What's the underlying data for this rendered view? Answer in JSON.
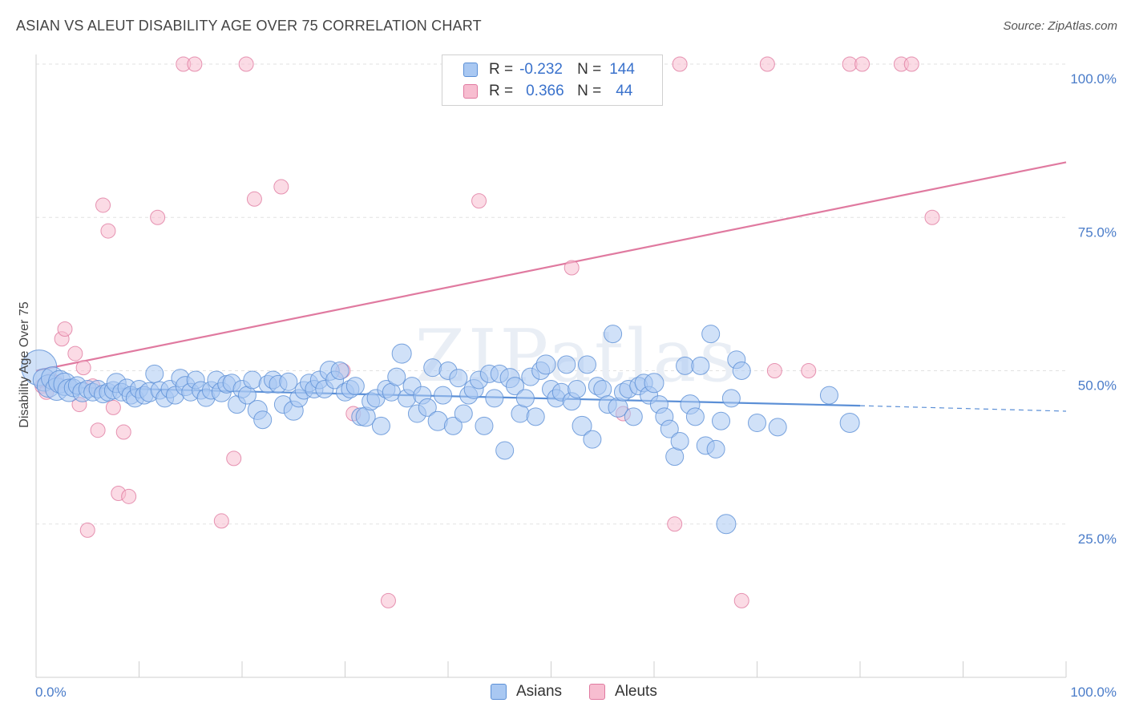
{
  "title": "ASIAN VS ALEUT DISABILITY AGE OVER 75 CORRELATION CHART",
  "source": "Source: ZipAtlas.com",
  "watermark": "ZIPatlas",
  "legend": {
    "rows": [
      {
        "r_label": "R =",
        "r_value": "-0.232",
        "n_label": "N =",
        "n_value": "144",
        "color": "#a9c8f2",
        "border": "#5b8fd6"
      },
      {
        "r_label": "R =",
        "r_value": "0.366",
        "n_label": "N =",
        "n_value": "44",
        "color": "#f7bdd0",
        "border": "#e07aa0"
      }
    ]
  },
  "bottom_legend": [
    {
      "label": "Asians",
      "color": "#a9c8f2",
      "border": "#5b8fd6"
    },
    {
      "label": "Aleuts",
      "color": "#f7bdd0",
      "border": "#e07aa0"
    }
  ],
  "chart_data": {
    "type": "scatter",
    "title": "ASIAN VS ALEUT DISABILITY AGE OVER 75 CORRELATION CHART",
    "xlabel": "",
    "ylabel": "Disability Age Over 75",
    "xlim": [
      0,
      100
    ],
    "ylim": [
      0,
      105
    ],
    "x_tick_labels": [
      "0.0%",
      "100.0%"
    ],
    "y_ticks": [
      25,
      50,
      75,
      100
    ],
    "y_tick_labels": [
      "25.0%",
      "50.0%",
      "75.0%",
      "100.0%"
    ],
    "grid": true,
    "legend_position": "top-center",
    "series": [
      {
        "name": "Asians",
        "color": "#5b8fd6",
        "fill": "#a9c8f2",
        "trend": {
          "x0": 0,
          "y0": 47.4,
          "x1": 80,
          "y1": 44.3,
          "dashed_to_x": 100,
          "dashed_to_y": 43.4
        },
        "points": [
          [
            0.3,
            50.5
          ],
          [
            0.8,
            48.5
          ],
          [
            1.2,
            47.5
          ],
          [
            1.6,
            48.8
          ],
          [
            2.0,
            47.0
          ],
          [
            2.3,
            48.2
          ],
          [
            2.8,
            47.8
          ],
          [
            3.2,
            46.8
          ],
          [
            3.6,
            47.2
          ],
          [
            4.0,
            47.6
          ],
          [
            4.5,
            46.5
          ],
          [
            5.0,
            47.0
          ],
          [
            5.5,
            46.5
          ],
          [
            6.0,
            47.0
          ],
          [
            6.5,
            46.2
          ],
          [
            7.0,
            46.5
          ],
          [
            7.5,
            46.8
          ],
          [
            7.8,
            48.0
          ],
          [
            8.3,
            46.5
          ],
          [
            8.8,
            47.2
          ],
          [
            9.2,
            46.0
          ],
          [
            9.6,
            45.5
          ],
          [
            10.0,
            47.0
          ],
          [
            10.5,
            46.0
          ],
          [
            11.0,
            46.5
          ],
          [
            11.5,
            49.5
          ],
          [
            12.0,
            46.8
          ],
          [
            12.5,
            45.5
          ],
          [
            13.0,
            47.0
          ],
          [
            13.5,
            46.0
          ],
          [
            14.0,
            48.8
          ],
          [
            14.5,
            47.5
          ],
          [
            15.0,
            46.5
          ],
          [
            15.5,
            48.5
          ],
          [
            16.0,
            46.8
          ],
          [
            16.5,
            45.6
          ],
          [
            17.0,
            46.8
          ],
          [
            17.5,
            48.5
          ],
          [
            18.0,
            46.5
          ],
          [
            18.5,
            47.8
          ],
          [
            19.0,
            48.0
          ],
          [
            19.5,
            44.5
          ],
          [
            20.0,
            47.0
          ],
          [
            20.5,
            46.0
          ],
          [
            21.0,
            48.5
          ],
          [
            21.5,
            43.6
          ],
          [
            22.0,
            42.0
          ],
          [
            22.5,
            47.8
          ],
          [
            23.0,
            48.5
          ],
          [
            23.5,
            47.8
          ],
          [
            24.0,
            44.5
          ],
          [
            24.5,
            48.2
          ],
          [
            25.0,
            43.5
          ],
          [
            25.5,
            45.5
          ],
          [
            26.0,
            46.8
          ],
          [
            26.5,
            48.0
          ],
          [
            27.0,
            47.0
          ],
          [
            27.5,
            48.5
          ],
          [
            28.0,
            47.0
          ],
          [
            28.5,
            50.0
          ],
          [
            29.0,
            48.5
          ],
          [
            29.5,
            50.0
          ],
          [
            30.0,
            46.5
          ],
          [
            30.5,
            47.0
          ],
          [
            31.0,
            47.5
          ],
          [
            31.5,
            42.5
          ],
          [
            32.0,
            42.5
          ],
          [
            32.5,
            45.0
          ],
          [
            33.0,
            45.5
          ],
          [
            33.5,
            41.0
          ],
          [
            34.0,
            47.0
          ],
          [
            34.5,
            46.5
          ],
          [
            35.0,
            49.0
          ],
          [
            35.5,
            52.8
          ],
          [
            36.0,
            45.5
          ],
          [
            36.5,
            47.5
          ],
          [
            37.0,
            43.0
          ],
          [
            37.5,
            46.0
          ],
          [
            38.0,
            44.0
          ],
          [
            38.5,
            50.5
          ],
          [
            39.0,
            41.8
          ],
          [
            39.5,
            46.0
          ],
          [
            40.0,
            50.0
          ],
          [
            40.5,
            41.0
          ],
          [
            41.0,
            48.8
          ],
          [
            41.5,
            43.0
          ],
          [
            42.0,
            46.0
          ],
          [
            42.5,
            47.0
          ],
          [
            43.0,
            48.5
          ],
          [
            43.5,
            41.0
          ],
          [
            44.0,
            49.5
          ],
          [
            44.5,
            45.5
          ],
          [
            45.0,
            49.5
          ],
          [
            45.5,
            37.0
          ],
          [
            46.0,
            48.8
          ],
          [
            46.5,
            47.5
          ],
          [
            47.0,
            43.0
          ],
          [
            47.5,
            45.5
          ],
          [
            48.0,
            49.0
          ],
          [
            48.5,
            42.5
          ],
          [
            49.0,
            50.0
          ],
          [
            49.5,
            51.0
          ],
          [
            50.0,
            47.0
          ],
          [
            50.5,
            45.5
          ],
          [
            51.0,
            46.5
          ],
          [
            51.5,
            51.0
          ],
          [
            52.0,
            45.0
          ],
          [
            52.5,
            47.0
          ],
          [
            53.0,
            41.0
          ],
          [
            53.5,
            51.0
          ],
          [
            54.0,
            38.8
          ],
          [
            54.5,
            47.5
          ],
          [
            55.0,
            47.0
          ],
          [
            55.5,
            44.5
          ],
          [
            56.0,
            56.0
          ],
          [
            56.5,
            44.0
          ],
          [
            57.0,
            46.5
          ],
          [
            57.5,
            47.0
          ],
          [
            58.0,
            42.5
          ],
          [
            58.5,
            47.5
          ],
          [
            59.0,
            48.0
          ],
          [
            59.5,
            46.0
          ],
          [
            60.0,
            48.0
          ],
          [
            60.5,
            44.5
          ],
          [
            61.0,
            42.5
          ],
          [
            61.5,
            40.5
          ],
          [
            62.0,
            36.0
          ],
          [
            62.5,
            38.5
          ],
          [
            63.0,
            50.8
          ],
          [
            63.5,
            44.5
          ],
          [
            64.0,
            42.5
          ],
          [
            64.5,
            50.8
          ],
          [
            65.0,
            37.8
          ],
          [
            65.5,
            56.0
          ],
          [
            66.0,
            37.2
          ],
          [
            66.5,
            41.8
          ],
          [
            67.0,
            25.0
          ],
          [
            67.5,
            45.5
          ],
          [
            68.0,
            51.8
          ],
          [
            68.5,
            50.0
          ],
          [
            70.0,
            41.5
          ],
          [
            72.0,
            40.8
          ],
          [
            77.0,
            46.0
          ],
          [
            79.0,
            41.5
          ]
        ]
      },
      {
        "name": "Aleuts",
        "color": "#e07aa0",
        "fill": "#f7bdd0",
        "trend": {
          "x0": 0,
          "y0": 50.0,
          "x1": 100,
          "y1": 84.0
        },
        "points": [
          [
            0.6,
            47.5
          ],
          [
            1.0,
            46.5
          ],
          [
            1.5,
            48.5
          ],
          [
            2.0,
            48.0
          ],
          [
            2.5,
            55.2
          ],
          [
            2.8,
            56.8
          ],
          [
            3.8,
            52.8
          ],
          [
            4.2,
            44.5
          ],
          [
            4.6,
            50.5
          ],
          [
            5.0,
            24.0
          ],
          [
            5.5,
            47.5
          ],
          [
            6.0,
            40.3
          ],
          [
            6.5,
            77.0
          ],
          [
            7.0,
            72.8
          ],
          [
            7.5,
            44.0
          ],
          [
            8.0,
            30.0
          ],
          [
            8.5,
            40.0
          ],
          [
            9.0,
            29.5
          ],
          [
            11.8,
            75.0
          ],
          [
            14.3,
            100
          ],
          [
            15.4,
            100
          ],
          [
            18.0,
            25.5
          ],
          [
            19.2,
            35.7
          ],
          [
            20.4,
            100
          ],
          [
            21.2,
            78.0
          ],
          [
            23.8,
            80.0
          ],
          [
            29.8,
            50.0
          ],
          [
            30.8,
            43.0
          ],
          [
            34.2,
            12.5
          ],
          [
            43.0,
            77.7
          ],
          [
            47.2,
            100
          ],
          [
            52.0,
            66.8
          ],
          [
            57.0,
            43.0
          ],
          [
            62.0,
            25.0
          ],
          [
            62.5,
            100
          ],
          [
            68.5,
            12.5
          ],
          [
            71.0,
            100
          ],
          [
            71.7,
            50.0
          ],
          [
            75.0,
            50.0
          ],
          [
            79.0,
            100
          ],
          [
            80.2,
            100
          ],
          [
            84.0,
            100
          ],
          [
            85.0,
            100
          ],
          [
            87.0,
            75.0
          ]
        ]
      }
    ]
  }
}
